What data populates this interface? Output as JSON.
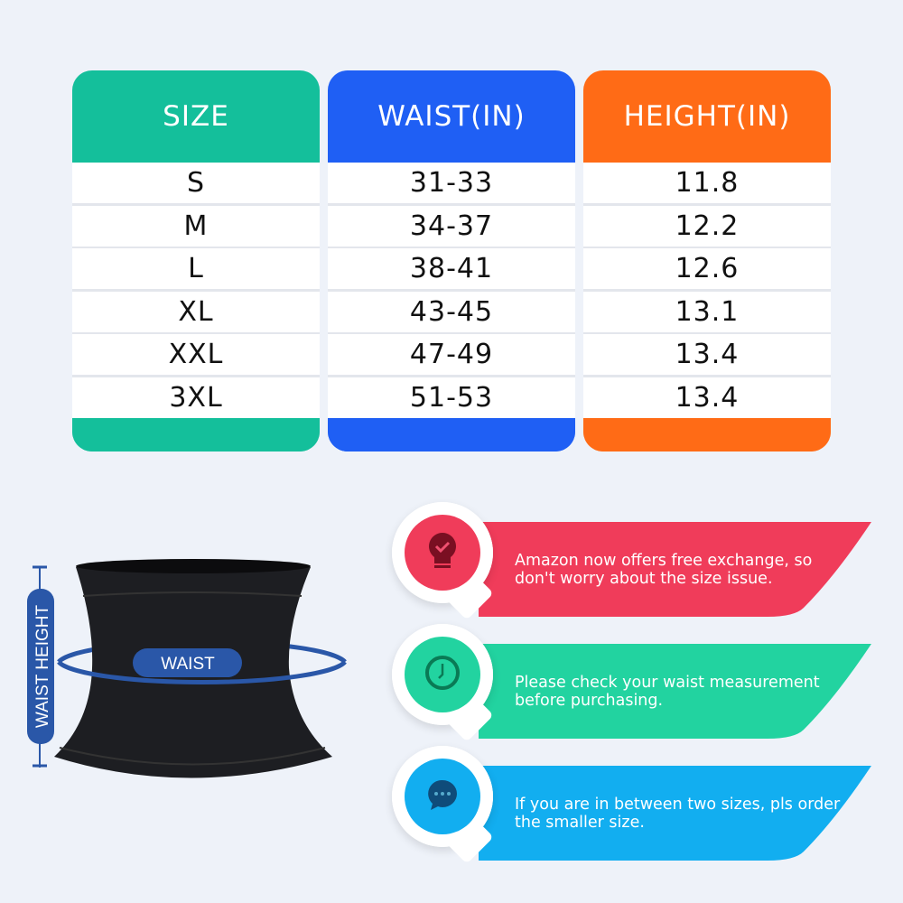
{
  "table": {
    "columns": [
      {
        "header": "SIZE",
        "color": "#14bf9b",
        "values": [
          "S",
          "M",
          "L",
          "XL",
          "XXL",
          "3XL"
        ]
      },
      {
        "header": "WAIST(IN)",
        "color": "#1f5ff4",
        "values": [
          "31-33",
          "34-37",
          "38-41",
          "43-45",
          "47-49",
          "51-53"
        ]
      },
      {
        "header": "HEIGHT(IN)",
        "color": "#ff6b16",
        "values": [
          "11.8",
          "12.2",
          "12.6",
          "13.1",
          "13.4",
          "13.4"
        ]
      }
    ]
  },
  "diagram": {
    "waist_label": "WAIST",
    "height_label": "WAIST HEIGHT",
    "accent": "#2a57a8"
  },
  "tips": [
    {
      "text": "Amazon now offers free exchange, so don't worry about the size issue.",
      "color": "#f03c5a",
      "icon": "lightbulb-check-icon"
    },
    {
      "text": "Please check your waist measurement before purchasing.",
      "color": "#22d3a0",
      "icon": "clock-icon"
    },
    {
      "text": "If you are in between two sizes, pls order the smaller size.",
      "color": "#12aef0",
      "icon": "chat-bubble-icon"
    }
  ]
}
